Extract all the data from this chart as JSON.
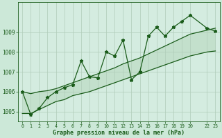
{
  "title": "Graphe pression niveau de la mer (hPa)",
  "bg_color": "#cce8d8",
  "plot_bg_color": "#d4ece0",
  "grid_color": "#b0ccb8",
  "line_color": "#1a5c1a",
  "fill_color": "#b8d8c0",
  "xlim": [
    -0.5,
    23.5
  ],
  "ylim": [
    1004.5,
    1010.5
  ],
  "yticks": [
    1005,
    1006,
    1007,
    1008,
    1009
  ],
  "x": [
    0,
    1,
    2,
    3,
    4,
    5,
    6,
    7,
    8,
    9,
    10,
    11,
    12,
    13,
    14,
    15,
    16,
    17,
    18,
    19,
    20,
    22,
    23
  ],
  "y_main": [
    1006.0,
    1004.85,
    1005.15,
    1005.7,
    1006.0,
    1006.2,
    1006.35,
    1007.55,
    1006.75,
    1006.7,
    1008.0,
    1007.8,
    1008.6,
    1006.6,
    1007.0,
    1008.8,
    1009.25,
    1008.8,
    1009.25,
    1009.55,
    1009.85,
    1009.2,
    1009.05
  ],
  "y_lower": [
    1004.9,
    1004.9,
    1005.1,
    1005.3,
    1005.5,
    1005.6,
    1005.8,
    1005.9,
    1006.0,
    1006.15,
    1006.3,
    1006.45,
    1006.6,
    1006.75,
    1006.9,
    1007.05,
    1007.2,
    1007.35,
    1007.5,
    1007.65,
    1007.8,
    1008.0,
    1008.05
  ],
  "y_upper": [
    1006.0,
    1005.9,
    1006.0,
    1006.05,
    1006.15,
    1006.3,
    1006.45,
    1006.6,
    1006.75,
    1006.9,
    1007.05,
    1007.2,
    1007.4,
    1007.55,
    1007.7,
    1007.9,
    1008.1,
    1008.3,
    1008.5,
    1008.7,
    1008.9,
    1009.1,
    1009.2
  ]
}
